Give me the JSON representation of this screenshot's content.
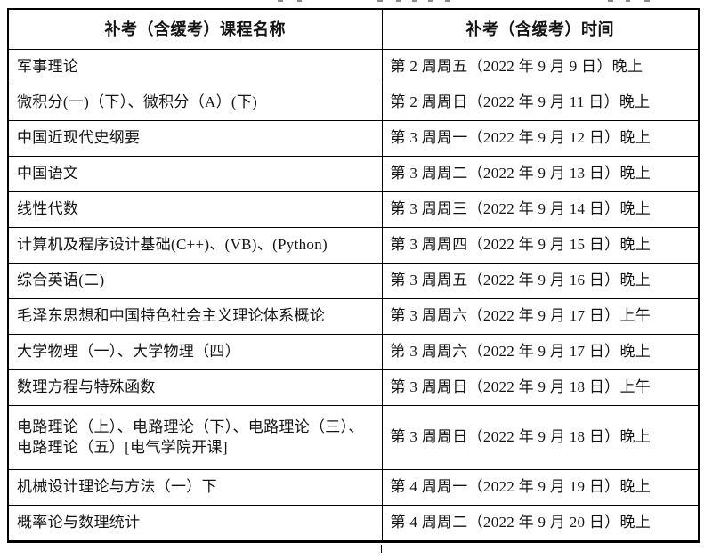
{
  "table": {
    "headers": {
      "course": "补考（含缓考）课程名称",
      "time": "补考（含缓考）时间"
    },
    "rows": [
      {
        "course": "军事理论",
        "time": "第 2 周周五（2022 年 9 月 9 日）晚上"
      },
      {
        "course": "微积分(一)（下）、微积分（A）(下)",
        "time": "第 2 周周日（2022 年 9 月 11 日）晚上"
      },
      {
        "course": "中国近现代史纲要",
        "time": "第 3 周周一（2022 年 9 月 12 日）晚上"
      },
      {
        "course": "中国语文",
        "time": "第 3 周周二（2022 年 9 月 13 日）晚上"
      },
      {
        "course": "线性代数",
        "time": "第 3 周周三（2022 年 9 月 14 日）晚上"
      },
      {
        "course": "计算机及程序设计基础(C++)、(VB)、(Python)",
        "time": "第 3 周周四（2022 年 9 月 15 日）晚上"
      },
      {
        "course": "综合英语(二)",
        "time": "第 3 周周五（2022 年 9 月 16 日）晚上"
      },
      {
        "course": "毛泽东思想和中国特色社会主义理论体系概论",
        "time": "第 3 周周六（2022 年 9 月 17 日）上午"
      },
      {
        "course": "大学物理（一）、大学物理（四）",
        "time": "第 3 周周六（2022 年 9 月 17 日）晚上"
      },
      {
        "course": "数理方程与特殊函数",
        "time": "第 3 周周日（2022 年 9 月 18 日）上午"
      },
      {
        "course": "电路理论（上）、电路理论（下）、电路理论（三）、电路理论（五）[电气学院开课]",
        "time": "第 3 周周日（2022 年 9 月 18 日）晚上"
      },
      {
        "course": "机械设计理论与方法（一）下",
        "time": "第 4 周周一（2022 年 9 月 19 日）晚上"
      },
      {
        "course": "概率论与数理统计",
        "time": "第 4 周周二（2022 年 9 月 20 日）晚上"
      }
    ]
  }
}
